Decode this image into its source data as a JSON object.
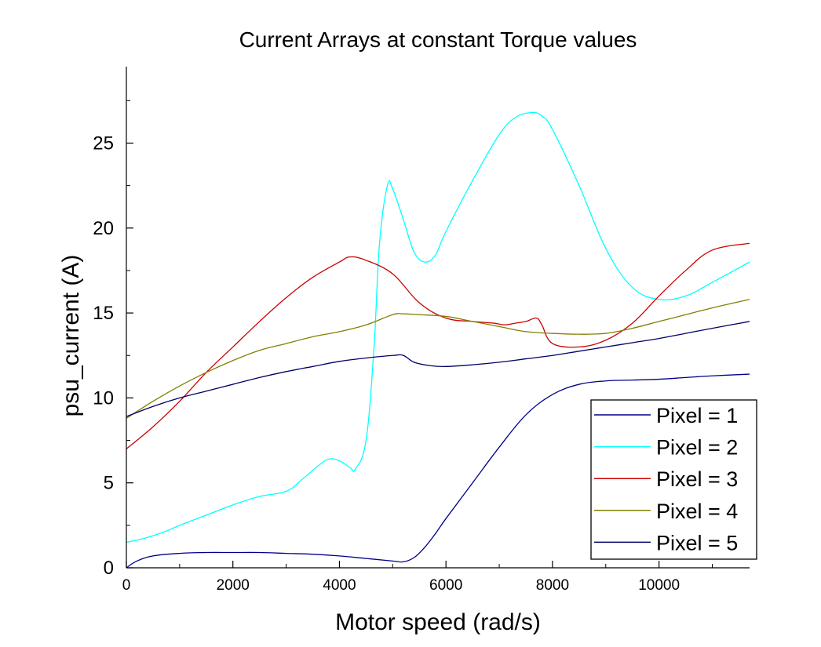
{
  "chart_data": {
    "type": "line",
    "title": "Current Arrays at constant Torque values",
    "xlabel": "Motor speed (rad/s)",
    "ylabel": "psu_current (A)",
    "xlim": [
      0,
      11700
    ],
    "ylim": [
      0,
      29.5
    ],
    "x_ticks": [
      0,
      2000,
      4000,
      6000,
      8000,
      10000
    ],
    "y_ticks": [
      0,
      5,
      10,
      15,
      20,
      25
    ],
    "grid": false,
    "legend_position": "bottom-right",
    "series": [
      {
        "name": "Pixel = 1",
        "color": "#00008b",
        "x": [
          0,
          200,
          500,
          1000,
          1500,
          2000,
          2500,
          3000,
          3500,
          4000,
          4500,
          5000,
          5200,
          5400,
          5600,
          5800,
          6000,
          6500,
          7000,
          7500,
          8000,
          8500,
          9000,
          9500,
          10000,
          10500,
          11000,
          11700
        ],
        "y": [
          0.0,
          0.4,
          0.7,
          0.85,
          0.9,
          0.9,
          0.9,
          0.85,
          0.8,
          0.7,
          0.55,
          0.4,
          0.35,
          0.6,
          1.2,
          2.0,
          2.9,
          5.0,
          7.1,
          9.0,
          10.2,
          10.8,
          11.0,
          11.05,
          11.1,
          11.2,
          11.3,
          11.4
        ]
      },
      {
        "name": "Pixel = 2",
        "color": "#00ffff",
        "x": [
          0,
          300,
          700,
          1000,
          1500,
          2000,
          2500,
          3000,
          3300,
          3600,
          3800,
          4000,
          4200,
          4300,
          4500,
          4650,
          4750,
          4900,
          5000,
          5200,
          5400,
          5600,
          5800,
          6000,
          6500,
          7000,
          7300,
          7600,
          7800,
          8000,
          8500,
          9000,
          9500,
          10000,
          10500,
          11000,
          11700
        ],
        "y": [
          1.5,
          1.7,
          2.1,
          2.5,
          3.1,
          3.7,
          4.2,
          4.5,
          5.2,
          6.0,
          6.4,
          6.3,
          5.9,
          5.8,
          7.5,
          13.0,
          19.0,
          22.5,
          22.3,
          20.5,
          18.6,
          18.0,
          18.4,
          19.8,
          22.8,
          25.5,
          26.5,
          26.8,
          26.6,
          25.8,
          22.5,
          18.8,
          16.5,
          15.8,
          16.0,
          16.8,
          18.0
        ]
      },
      {
        "name": "Pixel = 3",
        "color": "#cc0000",
        "x": [
          0,
          500,
          1000,
          1500,
          2000,
          2500,
          3000,
          3500,
          4000,
          4200,
          4500,
          5000,
          5500,
          6000,
          6500,
          6900,
          7100,
          7300,
          7500,
          7700,
          7800,
          8000,
          8500,
          9000,
          9500,
          10000,
          10500,
          11000,
          11700
        ],
        "y": [
          7.0,
          8.3,
          9.8,
          11.5,
          13.0,
          14.5,
          15.9,
          17.1,
          18.0,
          18.3,
          18.1,
          17.3,
          15.6,
          14.7,
          14.5,
          14.4,
          14.3,
          14.4,
          14.5,
          14.7,
          14.3,
          13.2,
          13.0,
          13.4,
          14.4,
          16.0,
          17.5,
          18.7,
          19.1
        ]
      },
      {
        "name": "Pixel = 4",
        "color": "#808000",
        "x": [
          0,
          500,
          1000,
          1500,
          2000,
          2500,
          3000,
          3500,
          4000,
          4500,
          5000,
          5200,
          5500,
          6000,
          6500,
          7000,
          7500,
          8000,
          8500,
          9000,
          9500,
          10000,
          10500,
          11000,
          11700
        ],
        "y": [
          8.8,
          9.8,
          10.7,
          11.5,
          12.2,
          12.8,
          13.2,
          13.6,
          13.9,
          14.3,
          14.9,
          14.95,
          14.9,
          14.8,
          14.5,
          14.2,
          13.9,
          13.8,
          13.75,
          13.8,
          14.1,
          14.5,
          14.9,
          15.3,
          15.8
        ]
      },
      {
        "name": "Pixel = 5",
        "color": "#000066",
        "x": [
          0,
          500,
          1000,
          1500,
          2000,
          2500,
          3000,
          3500,
          4000,
          4500,
          5000,
          5200,
          5400,
          5700,
          6000,
          6500,
          7000,
          7500,
          8000,
          8500,
          9000,
          9500,
          10000,
          10500,
          11000,
          11700
        ],
        "y": [
          8.9,
          9.5,
          10.0,
          10.4,
          10.8,
          11.2,
          11.55,
          11.85,
          12.15,
          12.35,
          12.5,
          12.5,
          12.1,
          11.9,
          11.85,
          11.95,
          12.1,
          12.3,
          12.5,
          12.75,
          13.0,
          13.25,
          13.5,
          13.8,
          14.1,
          14.5
        ]
      }
    ]
  }
}
